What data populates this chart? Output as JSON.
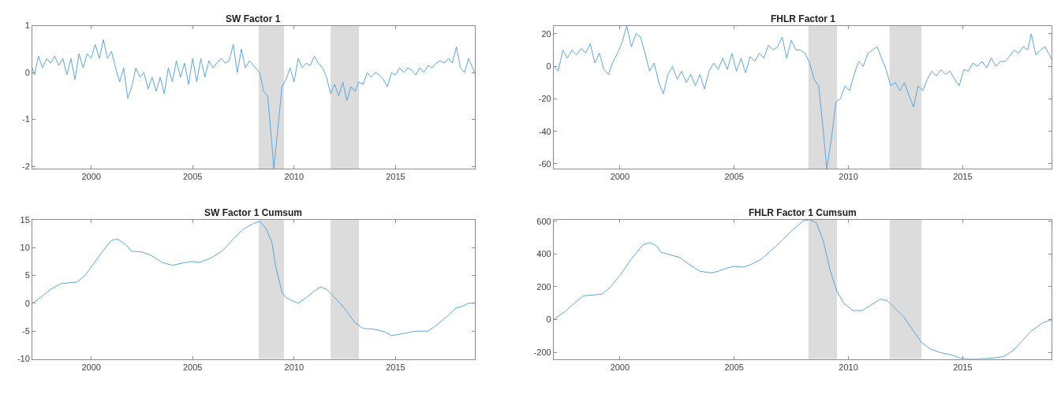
{
  "chart_data": [
    {
      "type": "line",
      "title": "SW Factor 1",
      "x": [
        1997.1,
        1997.2,
        1997.4,
        1997.6,
        1997.8,
        1998.0,
        1998.2,
        1998.4,
        1998.6,
        1998.8,
        1999.0,
        1999.2,
        1999.4,
        1999.6,
        1999.8,
        2000.0,
        2000.2,
        2000.4,
        2000.6,
        2000.8,
        2001.0,
        2001.2,
        2001.4,
        2001.6,
        2001.8,
        2002.0,
        2002.2,
        2002.4,
        2002.6,
        2002.8,
        2003.0,
        2003.2,
        2003.4,
        2003.6,
        2003.8,
        2004.0,
        2004.2,
        2004.4,
        2004.6,
        2004.8,
        2005.0,
        2005.2,
        2005.4,
        2005.6,
        2005.8,
        2006.0,
        2006.2,
        2006.4,
        2006.6,
        2006.8,
        2007.0,
        2007.2,
        2007.4,
        2007.6,
        2007.8,
        2008.0,
        2008.3,
        2008.5,
        2008.7,
        2008.9,
        2009.0,
        2009.2,
        2009.4,
        2009.6,
        2009.8,
        2010.0,
        2010.2,
        2010.4,
        2010.6,
        2010.8,
        2011.0,
        2011.2,
        2011.4,
        2011.6,
        2011.8,
        2012.0,
        2012.2,
        2012.4,
        2012.6,
        2012.8,
        2013.0,
        2013.2,
        2013.4,
        2013.6,
        2013.8,
        2014.0,
        2014.2,
        2014.4,
        2014.6,
        2014.8,
        2015.0,
        2015.2,
        2015.4,
        2015.6,
        2015.8,
        2016.0,
        2016.2,
        2016.4,
        2016.6,
        2016.8,
        2017.0,
        2017.2,
        2017.4,
        2017.6,
        2017.8,
        2018.0,
        2018.2,
        2018.4,
        2018.6,
        2018.8,
        2018.9
      ],
      "series": [
        {
          "color": "#5aa5dc",
          "values": [
            0.1,
            -0.05,
            0.35,
            0.1,
            0.3,
            0.2,
            0.35,
            0.15,
            0.3,
            -0.05,
            0.3,
            -0.15,
            0.4,
            0.1,
            0.4,
            0.3,
            0.6,
            0.3,
            0.7,
            0.3,
            0.45,
            0.1,
            -0.2,
            0.1,
            -0.55,
            -0.3,
            0.1,
            -0.1,
            0.0,
            -0.35,
            -0.1,
            -0.4,
            -0.1,
            -0.45,
            0.1,
            -0.2,
            0.25,
            -0.1,
            0.2,
            -0.25,
            0.3,
            -0.2,
            0.3,
            -0.1,
            0.25,
            0.1,
            0.2,
            0.3,
            0.2,
            0.25,
            0.6,
            0.0,
            0.5,
            0.1,
            0.25,
            0.15,
            0.0,
            -0.4,
            -0.5,
            -1.5,
            -2.05,
            -1.2,
            -0.3,
            -0.15,
            0.1,
            -0.2,
            0.3,
            0.1,
            0.2,
            0.15,
            0.35,
            0.2,
            0.1,
            -0.1,
            -0.45,
            -0.25,
            -0.5,
            -0.2,
            -0.6,
            -0.3,
            -0.4,
            -0.2,
            -0.25,
            0.0,
            -0.1,
            0.0,
            -0.05,
            -0.15,
            -0.3,
            0.0,
            -0.05,
            0.1,
            0.0,
            0.1,
            0.05,
            -0.05,
            0.1,
            0.0,
            0.15,
            0.1,
            0.2,
            0.25,
            0.2,
            0.3,
            0.2,
            0.55,
            0.1,
            0.0,
            0.3,
            0.1,
            0.0
          ]
        }
      ],
      "xlim": [
        1997.1,
        2018.9
      ],
      "ylim": [
        -2.05,
        1
      ],
      "xticks": [
        2000,
        2005,
        2010,
        2015
      ],
      "yticks": [
        -2,
        -1,
        0,
        1
      ],
      "bands": [
        {
          "axis": "x",
          "from": 2008.25,
          "to": 2009.5,
          "color": "#dcdcdc"
        },
        {
          "axis": "x",
          "from": 2011.8,
          "to": 2013.2,
          "color": "#dcdcdc"
        }
      ]
    },
    {
      "type": "line",
      "title": "FHLR Factor 1",
      "x": [
        1997.1,
        1997.3,
        1997.5,
        1997.7,
        1997.9,
        1998.1,
        1998.3,
        1998.5,
        1998.7,
        1998.9,
        1999.1,
        1999.3,
        1999.5,
        1999.7,
        1999.9,
        2000.1,
        2000.3,
        2000.5,
        2000.7,
        2000.9,
        2001.1,
        2001.3,
        2001.5,
        2001.7,
        2001.9,
        2002.1,
        2002.3,
        2002.5,
        2002.7,
        2002.9,
        2003.1,
        2003.3,
        2003.5,
        2003.7,
        2003.9,
        2004.1,
        2004.3,
        2004.5,
        2004.7,
        2004.9,
        2005.1,
        2005.3,
        2005.5,
        2005.7,
        2005.9,
        2006.1,
        2006.3,
        2006.5,
        2006.7,
        2006.9,
        2007.1,
        2007.3,
        2007.5,
        2007.7,
        2007.9,
        2008.1,
        2008.3,
        2008.5,
        2008.7,
        2008.9,
        2009.05,
        2009.25,
        2009.45,
        2009.65,
        2009.85,
        2010.05,
        2010.25,
        2010.45,
        2010.65,
        2010.85,
        2011.05,
        2011.25,
        2011.45,
        2011.65,
        2011.85,
        2012.05,
        2012.25,
        2012.45,
        2012.65,
        2012.85,
        2013.05,
        2013.25,
        2013.45,
        2013.65,
        2013.85,
        2014.05,
        2014.25,
        2014.45,
        2014.65,
        2014.85,
        2015.05,
        2015.25,
        2015.45,
        2015.65,
        2015.85,
        2016.05,
        2016.25,
        2016.45,
        2016.65,
        2016.85,
        2017.05,
        2017.25,
        2017.45,
        2017.65,
        2017.85,
        2018.0,
        2018.2,
        2018.4,
        2018.6,
        2018.8,
        2018.9
      ],
      "series": [
        {
          "color": "#5aa5dc",
          "values": [
            0,
            -3,
            10,
            5,
            10,
            7,
            11,
            8,
            14,
            2,
            8,
            -2,
            -5,
            3,
            8,
            15,
            25,
            12,
            20,
            18,
            8,
            -3,
            2,
            -10,
            -17,
            -5,
            0,
            -8,
            -3,
            -10,
            -5,
            -12,
            -5,
            -14,
            -3,
            2,
            -2,
            5,
            -2,
            8,
            -3,
            5,
            -4,
            6,
            3,
            8,
            5,
            13,
            10,
            12,
            18,
            5,
            16,
            10,
            10,
            8,
            2,
            -8,
            -12,
            -40,
            -63,
            -45,
            -22,
            -20,
            -12,
            -15,
            -5,
            3,
            0,
            8,
            10,
            12,
            5,
            -2,
            -12,
            -10,
            -15,
            -10,
            -18,
            -25,
            -12,
            -15,
            -8,
            -3,
            -6,
            -2,
            -5,
            -3,
            -8,
            -12,
            -2,
            -3,
            2,
            0,
            3,
            -1,
            5,
            0,
            3,
            3,
            6,
            10,
            8,
            12,
            10,
            20,
            7,
            10,
            12,
            7,
            4
          ]
        }
      ],
      "xlim": [
        1997.1,
        2018.9
      ],
      "ylim": [
        -63,
        25
      ],
      "xticks": [
        2000,
        2005,
        2010,
        2015
      ],
      "yticks": [
        -60,
        -40,
        -20,
        0,
        20
      ],
      "bands": [
        {
          "axis": "x",
          "from": 2008.25,
          "to": 2009.5,
          "color": "#dcdcdc"
        },
        {
          "axis": "x",
          "from": 2011.8,
          "to": 2013.2,
          "color": "#dcdcdc"
        }
      ]
    },
    {
      "type": "line",
      "title": "SW Factor 1 Cumsum",
      "x": [
        1997.1,
        1997.5,
        1998,
        1998.5,
        1999,
        1999.3,
        1999.7,
        2000,
        2000.5,
        2001,
        2001.3,
        2001.7,
        2002,
        2002.5,
        2003,
        2003.5,
        2004,
        2004.5,
        2005,
        2005.3,
        2005.7,
        2006,
        2006.5,
        2007,
        2007.5,
        2008,
        2008.3,
        2008.6,
        2008.9,
        2009.1,
        2009.4,
        2009.6,
        2010,
        2010.2,
        2010.6,
        2011,
        2011.3,
        2011.6,
        2012,
        2012.5,
        2013,
        2013.4,
        2014,
        2014.5,
        2014.8,
        2015.3,
        2016,
        2016.6,
        2017,
        2017.5,
        2018,
        2018.2,
        2018.6,
        2018.9
      ],
      "series": [
        {
          "color": "#5aa5dc",
          "values": [
            0,
            1,
            2.5,
            3.5,
            3.7,
            3.8,
            5,
            6.5,
            9,
            11.3,
            11.5,
            10.5,
            9.3,
            9.2,
            8.5,
            7.3,
            6.8,
            7.2,
            7.5,
            7.3,
            7.8,
            8.3,
            9.5,
            11.5,
            13.3,
            14.3,
            14.7,
            13.5,
            11,
            6.5,
            2,
            1,
            0.3,
            0,
            1,
            2.2,
            2.9,
            2.5,
            1,
            -1,
            -3.5,
            -4.5,
            -4.7,
            -5.2,
            -5.8,
            -5.5,
            -5,
            -5,
            -4,
            -2.5,
            -0.8,
            -0.7,
            0,
            0
          ]
        }
      ],
      "xlim": [
        1997.1,
        2018.9
      ],
      "ylim": [
        -10,
        15
      ],
      "xticks": [
        2000,
        2005,
        2010,
        2015
      ],
      "yticks": [
        -10,
        -5,
        0,
        5,
        10,
        15
      ],
      "bands": [
        {
          "axis": "x",
          "from": 2008.25,
          "to": 2009.5,
          "color": "#dcdcdc"
        },
        {
          "axis": "x",
          "from": 2011.8,
          "to": 2013.2,
          "color": "#dcdcdc"
        }
      ]
    },
    {
      "type": "line",
      "title": "FHLR Factor 1 Cumsum",
      "x": [
        1997.1,
        1997.6,
        1998,
        1998.4,
        1998.8,
        1999.2,
        1999.6,
        2000,
        2000.5,
        2001,
        2001.3,
        2001.6,
        2001.8,
        2002.2,
        2002.6,
        2003,
        2003.5,
        2004,
        2004.3,
        2004.7,
        2005,
        2005.4,
        2005.8,
        2006.2,
        2006.6,
        2007,
        2007.5,
        2008,
        2008.3,
        2008.6,
        2008.9,
        2009.2,
        2009.5,
        2009.8,
        2010.2,
        2010.6,
        2011,
        2011.4,
        2011.7,
        2012,
        2012.4,
        2012.8,
        2013.2,
        2013.6,
        2014,
        2014.5,
        2014.9,
        2015.3,
        2015.8,
        2016.3,
        2016.8,
        2017.2,
        2017.6,
        2018,
        2018.5,
        2018.9
      ],
      "series": [
        {
          "color": "#5aa5dc",
          "values": [
            0,
            50,
            100,
            145,
            150,
            155,
            200,
            270,
            370,
            455,
            470,
            450,
            410,
            395,
            380,
            340,
            295,
            285,
            295,
            315,
            325,
            320,
            340,
            370,
            420,
            470,
            540,
            600,
            610,
            590,
            480,
            300,
            170,
            100,
            55,
            55,
            90,
            125,
            115,
            75,
            20,
            -60,
            -140,
            -180,
            -200,
            -215,
            -235,
            -240,
            -238,
            -235,
            -225,
            -190,
            -130,
            -70,
            -20,
            0
          ]
        }
      ],
      "xlim": [
        1997.1,
        2018.9
      ],
      "ylim": [
        -240,
        610
      ],
      "xticks": [
        2000,
        2005,
        2010,
        2015
      ],
      "yticks": [
        -200,
        0,
        200,
        400,
        600
      ],
      "bands": [
        {
          "axis": "x",
          "from": 2008.25,
          "to": 2009.5,
          "color": "#dcdcdc"
        },
        {
          "axis": "x",
          "from": 2011.8,
          "to": 2013.2,
          "color": "#dcdcdc"
        }
      ]
    }
  ]
}
